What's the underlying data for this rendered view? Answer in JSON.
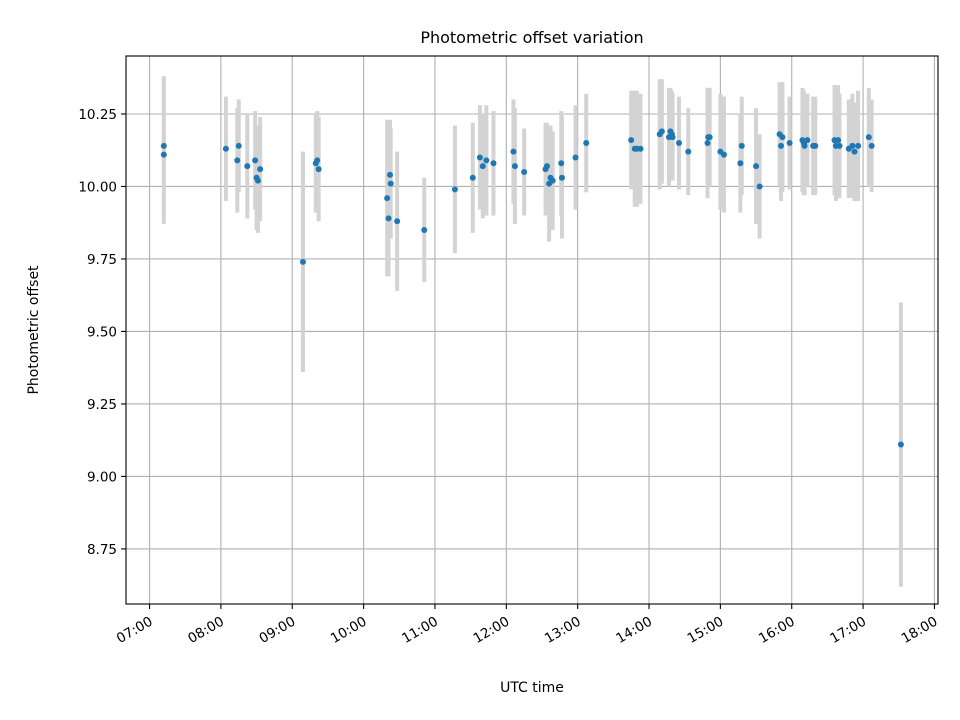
{
  "chart_data": {
    "type": "scatter",
    "title": "Photometric offset variation",
    "xlabel": "UTC time",
    "ylabel": "Photometric offset",
    "x_tick_labels": [
      "07:00",
      "08:00",
      "09:00",
      "10:00",
      "11:00",
      "12:00",
      "13:00",
      "14:00",
      "15:00",
      "16:00",
      "17:00",
      "18:00"
    ],
    "x_tick_hours": [
      7,
      8,
      9,
      10,
      11,
      12,
      13,
      14,
      15,
      16,
      17,
      18
    ],
    "y_ticks": [
      8.75,
      9.0,
      9.25,
      9.5,
      9.75,
      10.0,
      10.25
    ],
    "y_tick_labels": [
      "8.75",
      "9.00",
      "9.25",
      "9.50",
      "9.75",
      "10.00",
      "10.25"
    ],
    "xlim_hours": [
      6.67,
      18.05
    ],
    "ylim": [
      8.56,
      10.45
    ],
    "grid": true,
    "colors": {
      "points": "#1f77b4",
      "errorbars": "#d3d3d3",
      "grid": "#b0b0b0"
    },
    "series": [
      {
        "x_hours": [
          7.2,
          7.2,
          8.07,
          8.23,
          8.25,
          8.37,
          8.48,
          8.5,
          8.52,
          8.55,
          9.15,
          9.33,
          9.35,
          9.37,
          10.33,
          10.35,
          10.37,
          10.38,
          10.47,
          10.85,
          11.28,
          11.53,
          11.63,
          11.67,
          11.72,
          11.82,
          12.1,
          12.12,
          12.25,
          12.55,
          12.57,
          12.6,
          12.62,
          12.65,
          12.77,
          12.78,
          12.97,
          13.12,
          13.75,
          13.8,
          13.83,
          13.88,
          14.15,
          14.18,
          14.28,
          14.3,
          14.32,
          14.33,
          14.42,
          14.55,
          14.82,
          14.83,
          14.85,
          15.0,
          15.05,
          15.28,
          15.3,
          15.5,
          15.55,
          15.83,
          15.85,
          15.87,
          15.97,
          16.15,
          16.17,
          16.18,
          16.22,
          16.3,
          16.33,
          16.6,
          16.62,
          16.65,
          16.67,
          16.8,
          16.85,
          16.88,
          16.93,
          17.08,
          17.12,
          17.53
        ],
        "y": [
          10.14,
          10.11,
          10.13,
          10.09,
          10.14,
          10.07,
          10.09,
          10.03,
          10.02,
          10.06,
          9.74,
          10.08,
          10.09,
          10.06,
          9.96,
          9.89,
          10.04,
          10.01,
          9.88,
          9.85,
          9.99,
          10.03,
          10.1,
          10.07,
          10.09,
          10.08,
          10.12,
          10.07,
          10.05,
          10.06,
          10.07,
          10.01,
          10.03,
          10.02,
          10.08,
          10.03,
          10.1,
          10.15,
          10.16,
          10.13,
          10.13,
          10.13,
          10.18,
          10.19,
          10.17,
          10.19,
          10.18,
          10.17,
          10.15,
          10.12,
          10.15,
          10.17,
          10.17,
          10.12,
          10.11,
          10.08,
          10.14,
          10.07,
          10.0,
          10.18,
          10.14,
          10.17,
          10.15,
          10.16,
          10.15,
          10.14,
          10.16,
          10.14,
          10.14,
          10.16,
          10.14,
          10.16,
          10.14,
          10.13,
          10.14,
          10.12,
          10.14,
          10.17,
          10.14,
          9.11
        ],
        "err": [
          0.24,
          0.24,
          0.18,
          0.18,
          0.16,
          0.18,
          0.17,
          0.18,
          0.18,
          0.18,
          0.38,
          0.17,
          0.17,
          0.18,
          0.27,
          0.2,
          0.19,
          0.19,
          0.24,
          0.18,
          0.22,
          0.19,
          0.18,
          0.18,
          0.19,
          0.18,
          0.18,
          0.2,
          0.15,
          0.16,
          0.15,
          0.2,
          0.18,
          0.17,
          0.18,
          0.21,
          0.18,
          0.17,
          0.17,
          0.2,
          0.2,
          0.19,
          0.19,
          0.18,
          0.17,
          0.15,
          0.15,
          0.15,
          0.16,
          0.15,
          0.19,
          0.17,
          0.17,
          0.2,
          0.2,
          0.17,
          0.17,
          0.2,
          0.18,
          0.18,
          0.19,
          0.19,
          0.16,
          0.18,
          0.18,
          0.17,
          0.16,
          0.17,
          0.17,
          0.19,
          0.19,
          0.19,
          0.18,
          0.17,
          0.18,
          0.17,
          0.19,
          0.17,
          0.16,
          0.49
        ]
      }
    ]
  }
}
